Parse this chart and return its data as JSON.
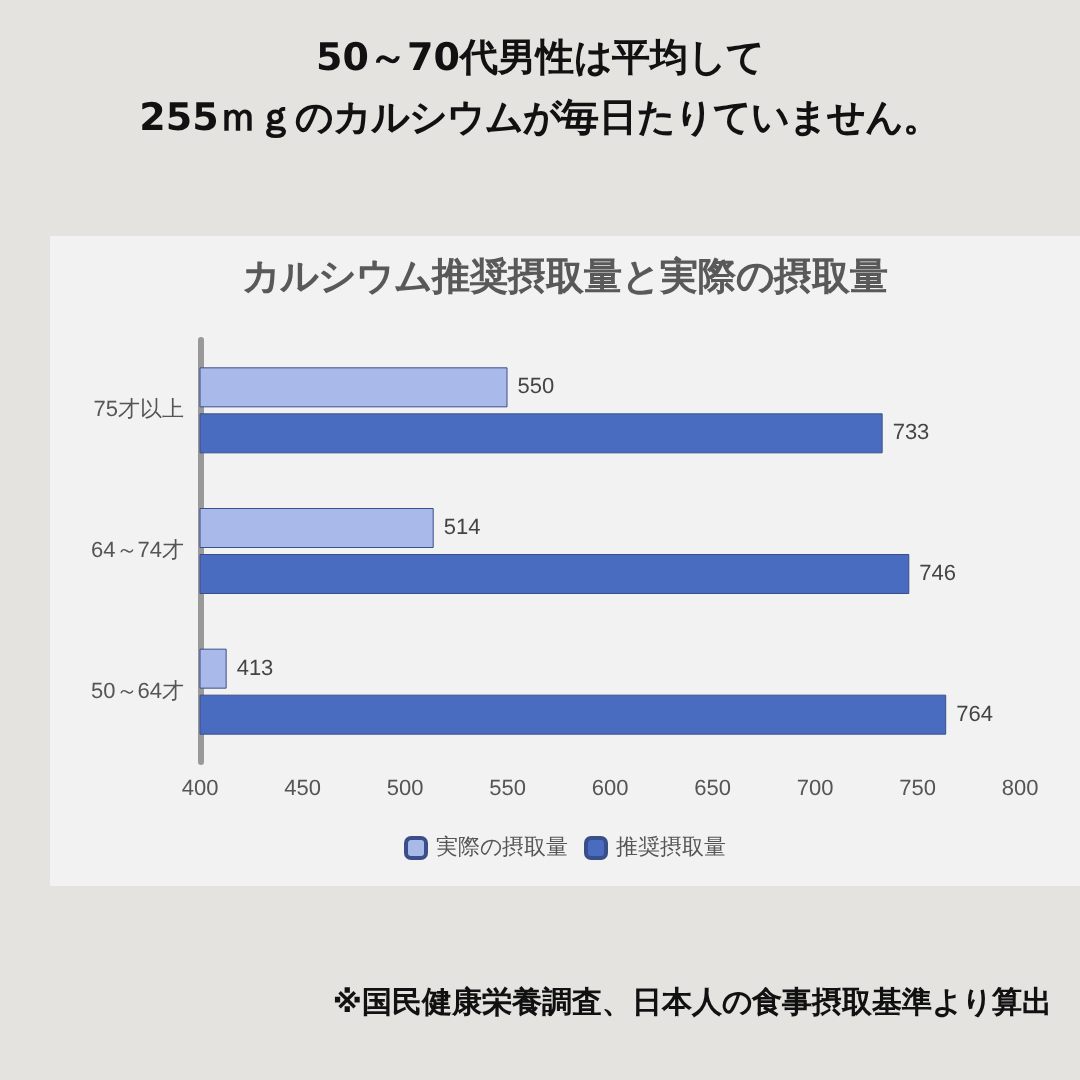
{
  "chart_data": {
    "type": "bar",
    "orientation": "horizontal",
    "title": "50～70代男性は平均して\n255ｍｇのカルシウムが毎日たりていません。",
    "subtitle": "カルシウム推奨摂取量と実際の摂取量",
    "categories": [
      "75才以上",
      "64～74才",
      "50～64才"
    ],
    "series": [
      {
        "name": "実際の摂取量",
        "color": "#a9b9ea",
        "values": [
          550,
          514,
          413
        ]
      },
      {
        "name": "推奨摂取量",
        "color": "#4a6cc0",
        "values": [
          733,
          746,
          764
        ]
      }
    ],
    "xlim": [
      400,
      800
    ],
    "xticks": [
      400,
      450,
      500,
      550,
      600,
      650,
      700,
      750,
      800
    ],
    "data_labels": true,
    "legend": "bottom",
    "grid": false,
    "annotations": [
      "※国民健康栄養調査、日本人の食事摂取基準より算出"
    ]
  }
}
